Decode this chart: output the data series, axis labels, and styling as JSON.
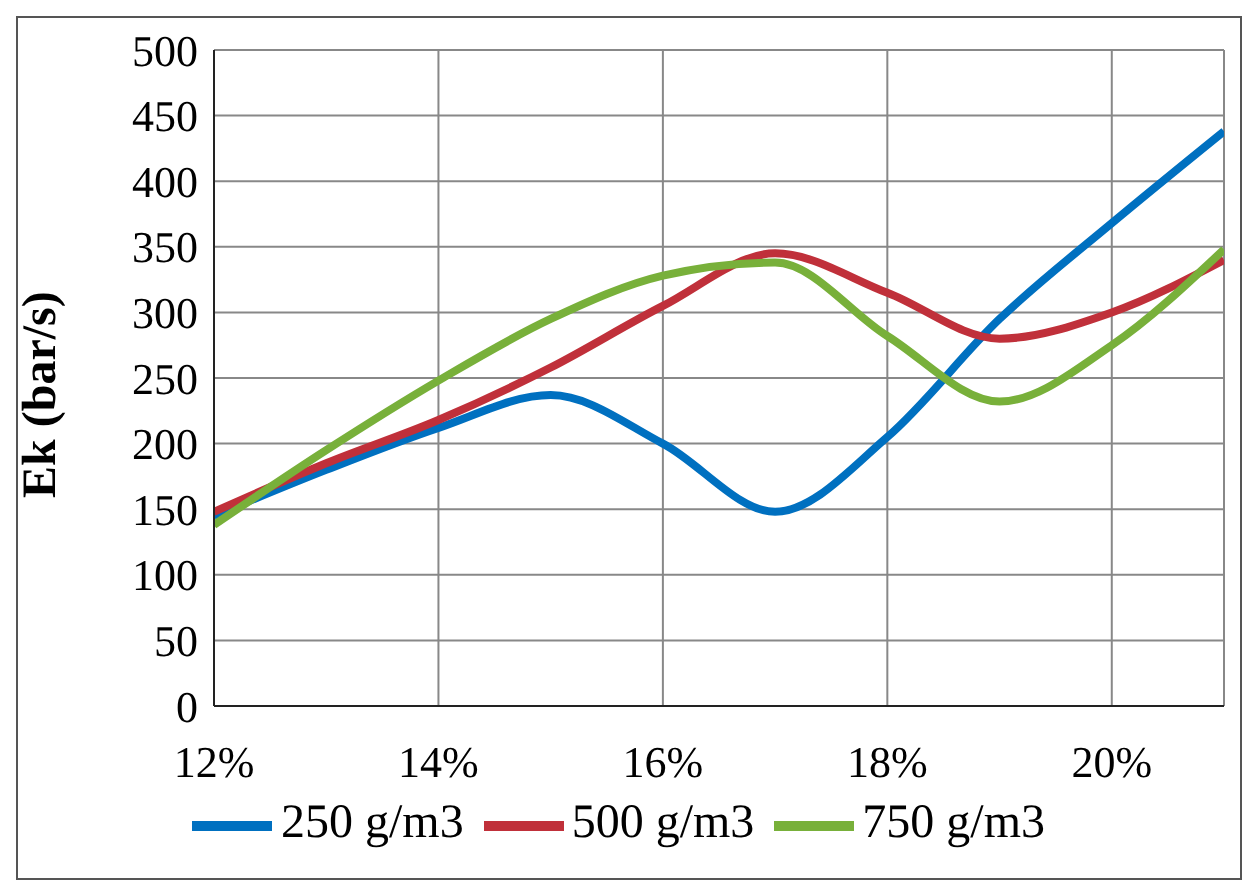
{
  "chart_data": {
    "type": "line",
    "ylabel": "Ek (bar/s)",
    "x": [
      12,
      13,
      14,
      15,
      16,
      17,
      18,
      19,
      20,
      21
    ],
    "series": [
      {
        "name": "250 g/m3",
        "color": "#0070c0",
        "values": [
          145,
          180,
          212,
          237,
          200,
          148,
          205,
          295,
          368,
          438
        ]
      },
      {
        "name": "500 g/m3",
        "color": "#c0303a",
        "values": [
          148,
          185,
          218,
          258,
          305,
          345,
          315,
          280,
          300,
          340
        ]
      },
      {
        "name": "750 g/m3",
        "color": "#78b03a",
        "values": [
          138,
          195,
          248,
          295,
          328,
          338,
          282,
          232,
          275,
          348
        ]
      }
    ],
    "xlim": [
      12,
      21
    ],
    "xticks": [
      {
        "value": 12,
        "label": "12%"
      },
      {
        "value": 14,
        "label": "14%"
      },
      {
        "value": 16,
        "label": "16%"
      },
      {
        "value": 18,
        "label": "18%"
      },
      {
        "value": 20,
        "label": "20%"
      }
    ],
    "ylim": [
      0,
      500
    ],
    "yticks": [
      0,
      50,
      100,
      150,
      200,
      250,
      300,
      350,
      400,
      450,
      500
    ],
    "grid": true,
    "legend": "bottom",
    "marker": "none",
    "line_style": "solid"
  }
}
